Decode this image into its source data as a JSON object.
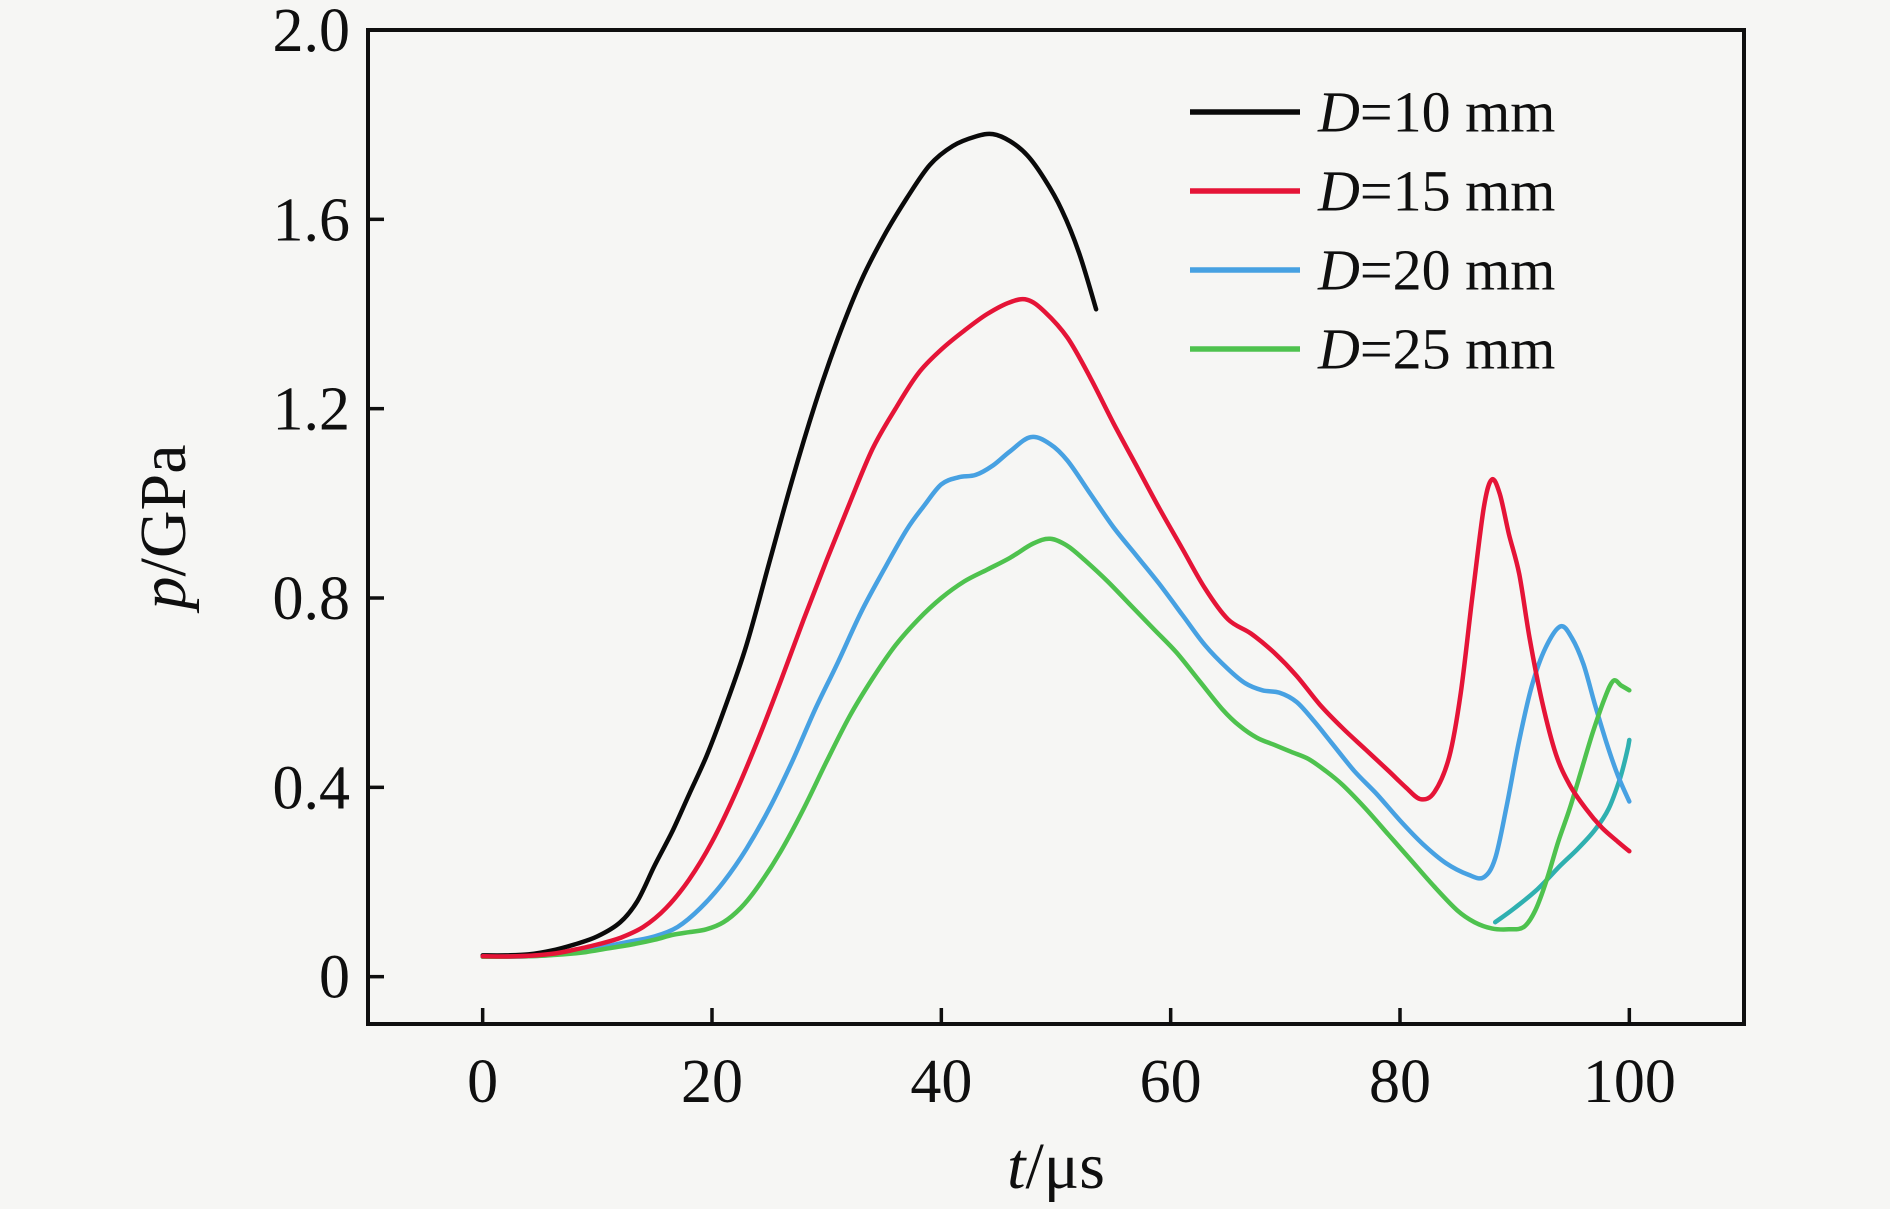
{
  "figure": {
    "background": "#f6f6f4",
    "frame_color": "#0f0f0f"
  },
  "chart_data": {
    "type": "line",
    "title": "",
    "xlabel": {
      "var": "t",
      "rest": "/μs"
    },
    "ylabel": {
      "var": "p",
      "rest": "/GPa"
    },
    "xlim": [
      -10,
      110
    ],
    "ylim": [
      -0.1,
      2.0
    ],
    "grid": false,
    "x_ticks": [
      {
        "v": 0,
        "label": "0"
      },
      {
        "v": 20,
        "label": "20"
      },
      {
        "v": 40,
        "label": "40"
      },
      {
        "v": 60,
        "label": "60"
      },
      {
        "v": 80,
        "label": "80"
      },
      {
        "v": 100,
        "label": "100"
      }
    ],
    "y_ticks": [
      {
        "v": 0,
        "label": "0"
      },
      {
        "v": 0.4,
        "label": "0.4"
      },
      {
        "v": 0.8,
        "label": "0.8"
      },
      {
        "v": 1.2,
        "label": "1.2"
      },
      {
        "v": 1.6,
        "label": "1.6"
      },
      {
        "v": 2.0,
        "label": "2.0"
      }
    ],
    "legend": {
      "position": "upper right",
      "entries": [
        {
          "var": "D",
          "rest": "=10 mm",
          "color": "#0a0a0a"
        },
        {
          "var": "D",
          "rest": "=15 mm",
          "color": "#e51437"
        },
        {
          "var": "D",
          "rest": "=20 mm",
          "color": "#47a1e2"
        },
        {
          "var": "D",
          "rest": "=25 mm",
          "color": "#4ec24e"
        }
      ]
    },
    "series": [
      {
        "name": "D=10 mm",
        "color": "#0a0a0a",
        "segments": [
          [
            [
              0,
              0.045
            ],
            [
              2,
              0.045
            ],
            [
              4,
              0.047
            ],
            [
              6,
              0.055
            ],
            [
              8,
              0.068
            ],
            [
              10,
              0.085
            ],
            [
              12,
              0.115
            ],
            [
              13.5,
              0.16
            ],
            [
              15,
              0.235
            ],
            [
              16.5,
              0.305
            ],
            [
              18,
              0.385
            ],
            [
              19.5,
              0.465
            ],
            [
              21,
              0.56
            ],
            [
              23,
              0.7
            ],
            [
              25,
              0.875
            ],
            [
              27,
              1.05
            ],
            [
              29,
              1.21
            ],
            [
              31,
              1.35
            ],
            [
              33,
              1.47
            ],
            [
              35,
              1.565
            ],
            [
              37,
              1.645
            ],
            [
              39,
              1.715
            ],
            [
              41,
              1.755
            ],
            [
              43,
              1.775
            ],
            [
              44.5,
              1.78
            ],
            [
              46,
              1.765
            ],
            [
              47.5,
              1.735
            ],
            [
              49,
              1.685
            ],
            [
              50.5,
              1.62
            ],
            [
              52,
              1.53
            ],
            [
              53.5,
              1.41
            ]
          ]
        ]
      },
      {
        "name": "D=20 mm tail",
        "color": "#2fb0b0",
        "segments": [
          [
            [
              88.3,
              0.115
            ],
            [
              90,
              0.145
            ],
            [
              92,
              0.185
            ],
            [
              94,
              0.235
            ],
            [
              95.5,
              0.27
            ],
            [
              97,
              0.31
            ],
            [
              98.2,
              0.355
            ],
            [
              99.2,
              0.42
            ],
            [
              99.8,
              0.475
            ],
            [
              100,
              0.5
            ]
          ]
        ]
      },
      {
        "name": "D=20 mm",
        "color": "#47a1e2",
        "segments": [
          [
            [
              0,
              0.042
            ],
            [
              4,
              0.043
            ],
            [
              7,
              0.048
            ],
            [
              9,
              0.055
            ],
            [
              11,
              0.065
            ],
            [
              13,
              0.075
            ],
            [
              15,
              0.085
            ],
            [
              17,
              0.105
            ],
            [
              19,
              0.145
            ],
            [
              21,
              0.2
            ],
            [
              23,
              0.27
            ],
            [
              25,
              0.355
            ],
            [
              27,
              0.455
            ],
            [
              29,
              0.565
            ],
            [
              31,
              0.665
            ],
            [
              33,
              0.77
            ],
            [
              35,
              0.86
            ],
            [
              37,
              0.945
            ],
            [
              38.5,
              0.995
            ],
            [
              40,
              1.04
            ],
            [
              41.5,
              1.055
            ],
            [
              43,
              1.06
            ],
            [
              44.5,
              1.08
            ],
            [
              46,
              1.11
            ],
            [
              47.8,
              1.14
            ],
            [
              49.5,
              1.125
            ],
            [
              51,
              1.09
            ],
            [
              53,
              1.02
            ],
            [
              55,
              0.95
            ],
            [
              57,
              0.89
            ],
            [
              59,
              0.83
            ],
            [
              61,
              0.765
            ],
            [
              63,
              0.7
            ],
            [
              65,
              0.65
            ],
            [
              66.5,
              0.62
            ],
            [
              68,
              0.605
            ],
            [
              69.5,
              0.6
            ],
            [
              71,
              0.58
            ],
            [
              72.5,
              0.54
            ],
            [
              74,
              0.495
            ],
            [
              76,
              0.435
            ],
            [
              78,
              0.385
            ],
            [
              80,
              0.33
            ],
            [
              82,
              0.28
            ],
            [
              84,
              0.24
            ],
            [
              86,
              0.215
            ],
            [
              87.3,
              0.21
            ],
            [
              88.3,
              0.25
            ],
            [
              89.3,
              0.36
            ],
            [
              90.4,
              0.5
            ],
            [
              91.5,
              0.615
            ],
            [
              92.7,
              0.695
            ],
            [
              94,
              0.74
            ],
            [
              95,
              0.715
            ],
            [
              96,
              0.66
            ],
            [
              97,
              0.575
            ],
            [
              98,
              0.495
            ],
            [
              99,
              0.425
            ],
            [
              100,
              0.37
            ]
          ]
        ]
      },
      {
        "name": "D=25 mm",
        "color": "#4ec24e",
        "segments": [
          [
            [
              0,
              0.042
            ],
            [
              4,
              0.043
            ],
            [
              7,
              0.047
            ],
            [
              9,
              0.052
            ],
            [
              11,
              0.06
            ],
            [
              13,
              0.068
            ],
            [
              15,
              0.078
            ],
            [
              16.5,
              0.088
            ],
            [
              18,
              0.094
            ],
            [
              19.5,
              0.1
            ],
            [
              21,
              0.115
            ],
            [
              22.5,
              0.145
            ],
            [
              24,
              0.19
            ],
            [
              26,
              0.265
            ],
            [
              28,
              0.355
            ],
            [
              30,
              0.455
            ],
            [
              32,
              0.55
            ],
            [
              34,
              0.63
            ],
            [
              36,
              0.7
            ],
            [
              38,
              0.755
            ],
            [
              40,
              0.8
            ],
            [
              42,
              0.835
            ],
            [
              44,
              0.86
            ],
            [
              46,
              0.885
            ],
            [
              48,
              0.915
            ],
            [
              49.5,
              0.925
            ],
            [
              51,
              0.91
            ],
            [
              52.5,
              0.88
            ],
            [
              54.5,
              0.835
            ],
            [
              56.5,
              0.785
            ],
            [
              58.5,
              0.735
            ],
            [
              60.5,
              0.685
            ],
            [
              62.5,
              0.625
            ],
            [
              64.5,
              0.565
            ],
            [
              66,
              0.53
            ],
            [
              67.5,
              0.505
            ],
            [
              69,
              0.49
            ],
            [
              70.5,
              0.475
            ],
            [
              72,
              0.46
            ],
            [
              73.5,
              0.435
            ],
            [
              75,
              0.405
            ],
            [
              77,
              0.355
            ],
            [
              79,
              0.3
            ],
            [
              81,
              0.245
            ],
            [
              83,
              0.19
            ],
            [
              85,
              0.14
            ],
            [
              86.5,
              0.115
            ],
            [
              88,
              0.102
            ],
            [
              89.5,
              0.1
            ],
            [
              90.8,
              0.105
            ],
            [
              91.8,
              0.14
            ],
            [
              92.8,
              0.205
            ],
            [
              93.8,
              0.285
            ],
            [
              94.8,
              0.355
            ],
            [
              95.8,
              0.435
            ],
            [
              96.8,
              0.515
            ],
            [
              97.8,
              0.585
            ],
            [
              98.6,
              0.625
            ],
            [
              99.3,
              0.615
            ],
            [
              100,
              0.605
            ]
          ]
        ]
      },
      {
        "name": "D=15 mm",
        "color": "#e51437",
        "segments": [
          [
            [
              0,
              0.043
            ],
            [
              3,
              0.043
            ],
            [
              6,
              0.048
            ],
            [
              8,
              0.057
            ],
            [
              10,
              0.068
            ],
            [
              12,
              0.082
            ],
            [
              14,
              0.105
            ],
            [
              16,
              0.145
            ],
            [
              18,
              0.205
            ],
            [
              20,
              0.285
            ],
            [
              22,
              0.385
            ],
            [
              24,
              0.5
            ],
            [
              26,
              0.625
            ],
            [
              28,
              0.755
            ],
            [
              30,
              0.88
            ],
            [
              32,
              1.0
            ],
            [
              34,
              1.115
            ],
            [
              36,
              1.2
            ],
            [
              38,
              1.275
            ],
            [
              40,
              1.325
            ],
            [
              42,
              1.365
            ],
            [
              44,
              1.4
            ],
            [
              46,
              1.425
            ],
            [
              47.5,
              1.43
            ],
            [
              49,
              1.405
            ],
            [
              51,
              1.35
            ],
            [
              53,
              1.265
            ],
            [
              55,
              1.17
            ],
            [
              57,
              1.08
            ],
            [
              59,
              0.99
            ],
            [
              61,
              0.905
            ],
            [
              63,
              0.82
            ],
            [
              65,
              0.755
            ],
            [
              67,
              0.725
            ],
            [
              69,
              0.685
            ],
            [
              71,
              0.635
            ],
            [
              73,
              0.575
            ],
            [
              75,
              0.525
            ],
            [
              77,
              0.48
            ],
            [
              79,
              0.435
            ],
            [
              80.5,
              0.4
            ],
            [
              81.8,
              0.375
            ],
            [
              83,
              0.39
            ],
            [
              84.3,
              0.465
            ],
            [
              85.3,
              0.6
            ],
            [
              86.3,
              0.8
            ],
            [
              87.3,
              0.99
            ],
            [
              88,
              1.05
            ],
            [
              88.7,
              1.02
            ],
            [
              89.5,
              0.935
            ],
            [
              90.4,
              0.85
            ],
            [
              91.3,
              0.715
            ],
            [
              92.4,
              0.58
            ],
            [
              93.6,
              0.47
            ],
            [
              94.8,
              0.405
            ],
            [
              96.2,
              0.355
            ],
            [
              97.6,
              0.315
            ],
            [
              99,
              0.285
            ],
            [
              100,
              0.265
            ]
          ]
        ]
      }
    ]
  }
}
